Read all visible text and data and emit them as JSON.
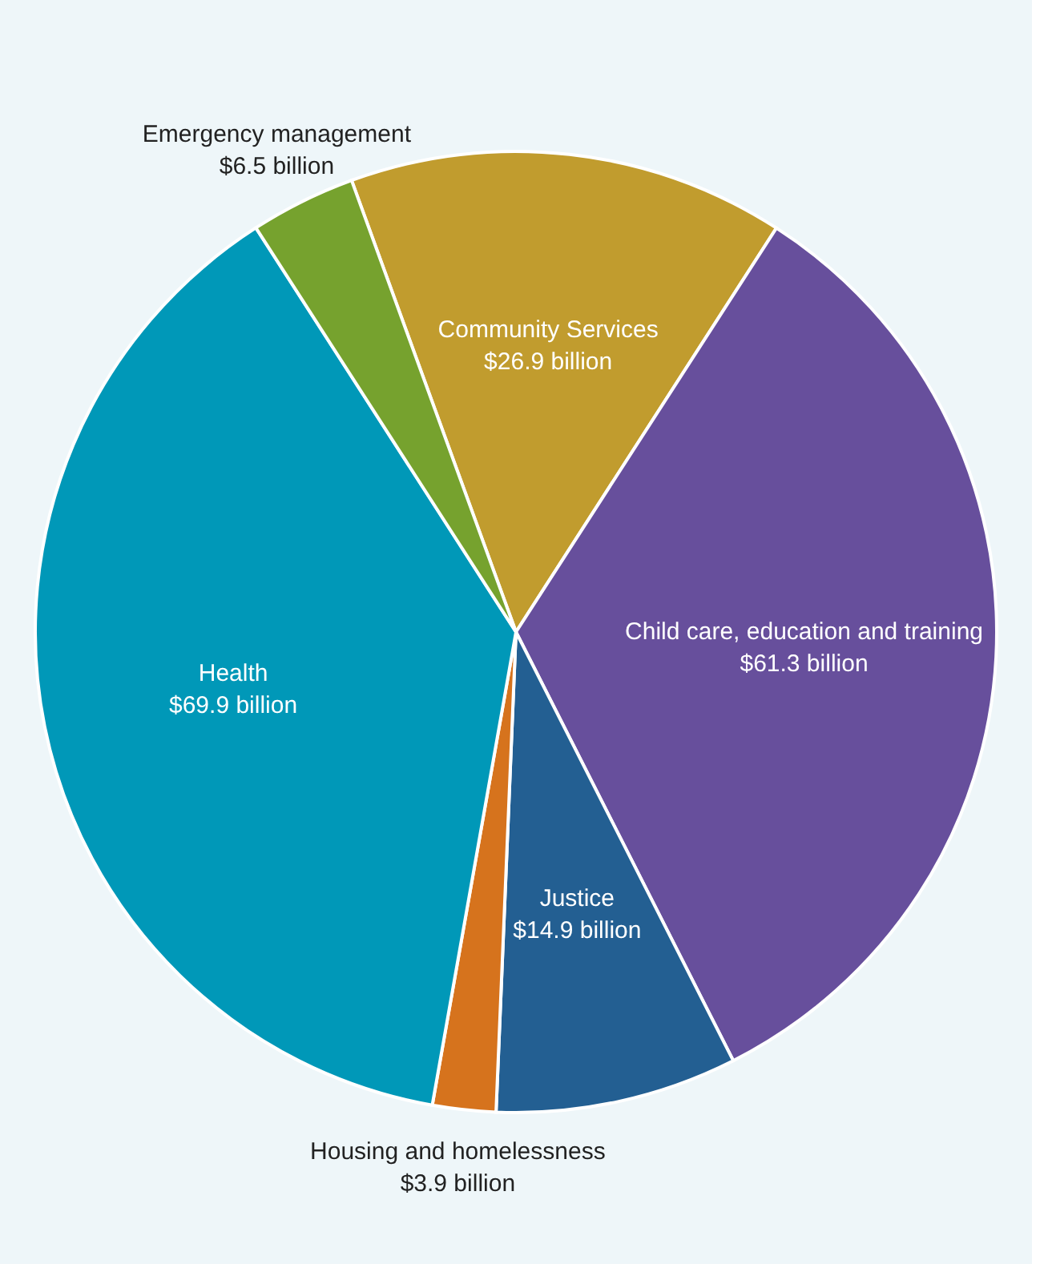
{
  "chart_data": {
    "type": "pie",
    "categories": [
      "Community Services",
      "Child care, education and training",
      "Justice",
      "Housing and homelessness",
      "Health",
      "Emergency management"
    ],
    "values": [
      26.9,
      61.3,
      14.9,
      3.9,
      69.9,
      6.5
    ],
    "colors": [
      "#c19c2e",
      "#674f9c",
      "#235f92",
      "#d6731d",
      "#0098b8",
      "#76a22e"
    ],
    "value_labels": [
      "$26.9 billion",
      "$61.3 billion",
      "$14.9 billion",
      "$3.9 billion",
      "$69.9 billion",
      "$6.5 billion"
    ]
  }
}
